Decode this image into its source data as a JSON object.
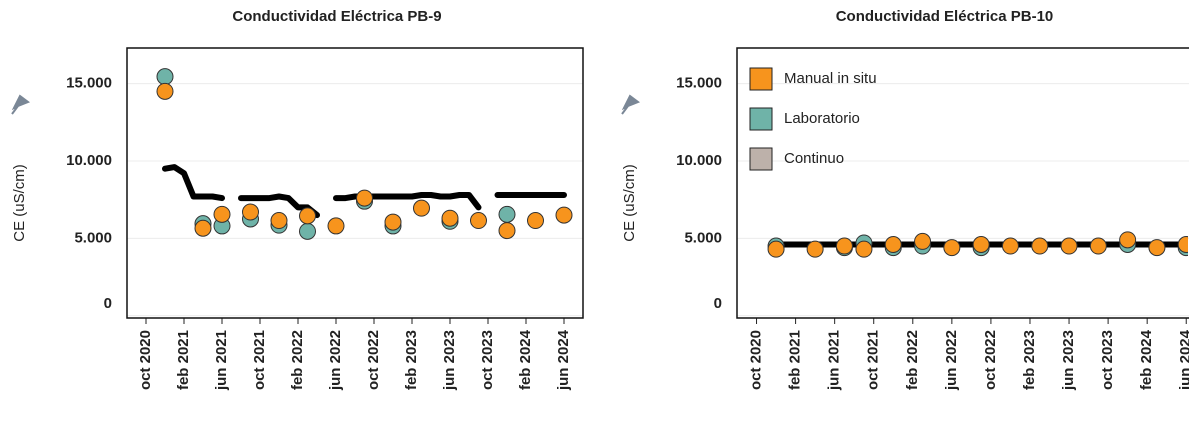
{
  "chart_data": [
    {
      "type": "scatter",
      "title": "Conductividad Eléctrica PB-9",
      "y_label": "CE (uS/cm)",
      "xlim": [
        "2020-08",
        "2024-08"
      ],
      "ylim": [
        -150,
        17300
      ],
      "xticks": [
        {
          "value": "2020-10",
          "label": "oct 2020"
        },
        {
          "value": "2021-02",
          "label": "feb 2021"
        },
        {
          "value": "2021-06",
          "label": "jun 2021"
        },
        {
          "value": "2021-10",
          "label": "oct 2021"
        },
        {
          "value": "2022-02",
          "label": "feb 2022"
        },
        {
          "value": "2022-06",
          "label": "jun 2022"
        },
        {
          "value": "2022-10",
          "label": "oct 2022"
        },
        {
          "value": "2023-02",
          "label": "feb 2023"
        },
        {
          "value": "2023-06",
          "label": "jun 2023"
        },
        {
          "value": "2023-10",
          "label": "oct 2023"
        },
        {
          "value": "2024-02",
          "label": "feb 2024"
        },
        {
          "value": "2024-06",
          "label": "jun 2024"
        }
      ],
      "yticks": [
        0,
        {
          "value": 5000,
          "label": "5.000"
        },
        {
          "value": 10000,
          "label": "10.000"
        },
        {
          "value": 15000,
          "label": "15.000"
        }
      ],
      "grid": true,
      "series": [
        {
          "name": "Manual in situ",
          "color": "#f7941d",
          "style": "markers",
          "x": [
            "2020-12",
            "2021-04",
            "2021-06",
            "2021-09",
            "2021-12",
            "2022-03",
            "2022-06",
            "2022-09",
            "2022-12",
            "2023-03",
            "2023-06",
            "2023-09",
            "2023-12",
            "2024-03",
            "2024-06"
          ],
          "values": [
            14500,
            5650,
            6550,
            6700,
            6150,
            6450,
            5800,
            7600,
            6050,
            6950,
            6300,
            6150,
            5500,
            6150,
            6500
          ]
        },
        {
          "name": "Laboratorio",
          "color": "#6fb3a8",
          "style": "markers",
          "x": [
            "2020-12",
            "2021-04",
            "2021-06",
            "2021-09",
            "2021-12",
            "2022-03",
            "2022-09",
            "2022-12",
            "2023-06",
            "2023-12"
          ],
          "values": [
            15450,
            5950,
            5800,
            6250,
            5850,
            5450,
            7400,
            5800,
            6100,
            6550
          ]
        },
        {
          "name": "Continuo",
          "color": "#bdb1aa",
          "line_color": "#000000",
          "style": "line",
          "x": [
            "2020-12",
            "2021-01",
            "2021-02",
            "2021-03",
            "2021-04",
            "2021-05",
            "2021-06",
            "2021-07",
            "2021-08",
            "2021-09",
            "2021-10",
            "2021-11",
            "2021-12",
            "2022-01",
            "2022-02",
            "2022-03",
            "2022-04",
            "2022-05",
            "2022-06",
            "2022-07",
            "2022-08",
            "2022-09",
            "2022-10",
            "2022-11",
            "2022-12",
            "2023-01",
            "2023-02",
            "2023-03",
            "2023-04",
            "2023-05",
            "2023-06",
            "2023-07",
            "2023-08",
            "2023-09",
            "2023-10",
            "2023-11",
            "2023-12",
            "2024-01",
            "2024-02",
            "2024-03",
            "2024-04",
            "2024-05",
            "2024-06"
          ],
          "values": [
            9500,
            9600,
            9200,
            7700,
            7700,
            7700,
            7600,
            null,
            7600,
            7600,
            7600,
            7600,
            7700,
            7600,
            7000,
            7000,
            6500,
            null,
            7600,
            7600,
            7700,
            7700,
            7700,
            7700,
            7700,
            7700,
            7700,
            7800,
            7800,
            7700,
            7700,
            7800,
            7800,
            7000,
            null,
            7800,
            7800,
            7800,
            7800,
            7800,
            7800,
            7800,
            7800
          ]
        }
      ]
    },
    {
      "type": "scatter",
      "title": "Conductividad Eléctrica PB-10",
      "y_label": "CE (uS/cm)",
      "xlim": [
        "2020-08",
        "2024-07"
      ],
      "ylim": [
        -150,
        17300
      ],
      "xticks": [
        {
          "value": "2020-10",
          "label": "oct 2020"
        },
        {
          "value": "2021-02",
          "label": "feb 2021"
        },
        {
          "value": "2021-06",
          "label": "jun 2021"
        },
        {
          "value": "2021-10",
          "label": "oct 2021"
        },
        {
          "value": "2022-02",
          "label": "feb 2022"
        },
        {
          "value": "2022-06",
          "label": "jun 2022"
        },
        {
          "value": "2022-10",
          "label": "oct 2022"
        },
        {
          "value": "2023-02",
          "label": "feb 2023"
        },
        {
          "value": "2023-06",
          "label": "jun 2023"
        },
        {
          "value": "2023-10",
          "label": "oct 2023"
        },
        {
          "value": "2024-02",
          "label": "feb 2024"
        },
        {
          "value": "2024-06",
          "label": "jun 2024"
        }
      ],
      "yticks": [
        0,
        {
          "value": 5000,
          "label": "5.000"
        },
        {
          "value": 10000,
          "label": "10.000"
        },
        {
          "value": 15000,
          "label": "15.000"
        }
      ],
      "grid": true,
      "legend": "upper left",
      "series": [
        {
          "name": "Manual in situ",
          "color": "#f7941d",
          "style": "markers",
          "x": [
            "2020-12",
            "2021-04",
            "2021-07",
            "2021-09",
            "2021-12",
            "2022-03",
            "2022-06",
            "2022-09",
            "2022-12",
            "2023-03",
            "2023-06",
            "2023-09",
            "2023-12",
            "2024-03",
            "2024-06"
          ],
          "values": [
            4300,
            4300,
            4500,
            4300,
            4600,
            4800,
            4400,
            4600,
            4500,
            4500,
            4500,
            4500,
            4900,
            4400,
            4600
          ]
        },
        {
          "name": "Laboratorio",
          "color": "#6fb3a8",
          "style": "markers",
          "x": [
            "2020-12",
            "2021-07",
            "2021-09",
            "2021-12",
            "2022-03",
            "2022-09",
            "2023-12",
            "2024-06"
          ],
          "values": [
            4500,
            4400,
            4700,
            4400,
            4500,
            4400,
            4600,
            4400
          ]
        },
        {
          "name": "Continuo",
          "color": "#bdb1aa",
          "line_color": "#000000",
          "style": "line",
          "x": [
            "2020-12",
            "2024-07"
          ],
          "values": [
            4600,
            4600
          ]
        }
      ]
    }
  ]
}
